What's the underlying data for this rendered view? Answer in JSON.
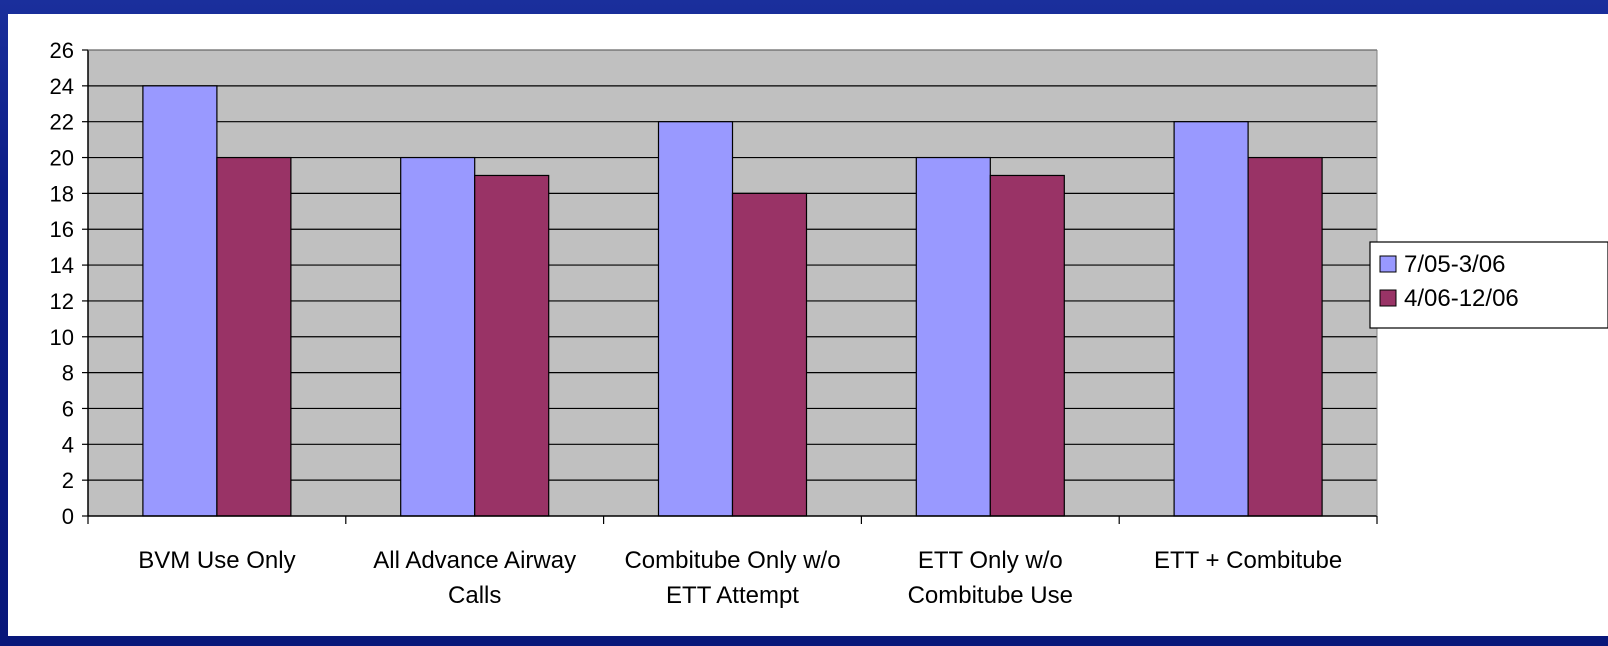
{
  "chart_data": {
    "type": "bar",
    "title": "",
    "xlabel": "",
    "ylabel": "",
    "categories": [
      [
        "BVM Use Only"
      ],
      [
        "All Advance Airway",
        "Calls"
      ],
      [
        "Combitube Only w/o",
        "ETT Attempt"
      ],
      [
        "ETT Only w/o",
        "Combitube Use"
      ],
      [
        "ETT + Combitube"
      ]
    ],
    "series": [
      {
        "name": "7/05-3/06",
        "color": "#9999ff",
        "values": [
          24,
          20,
          22,
          20,
          22
        ]
      },
      {
        "name": "4/06-12/06",
        "color": "#993366",
        "values": [
          20,
          19,
          18,
          19,
          20
        ]
      }
    ],
    "ylim": [
      0,
      26
    ],
    "yticks": [
      "0",
      "2",
      "4",
      "6",
      "8",
      "10",
      "12",
      "14",
      "16",
      "18",
      "20",
      "22",
      "24",
      "26"
    ],
    "grid": true,
    "plot_background": "#c0c0c0",
    "legend_position": "right"
  }
}
